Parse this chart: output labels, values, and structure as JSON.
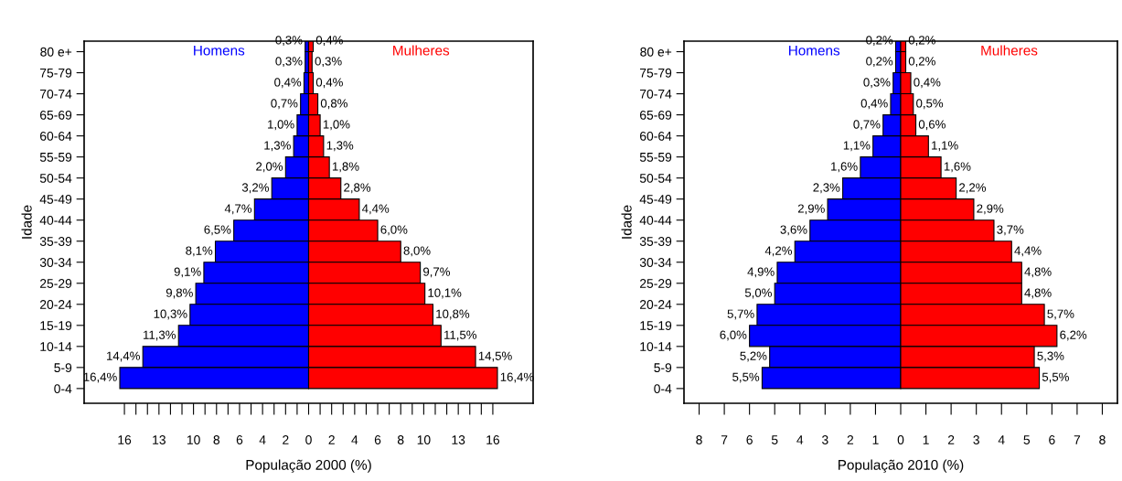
{
  "chart_data": [
    {
      "type": "bar",
      "orientation": "horizontal",
      "xlabel": "População 2000 (%)",
      "ylabel": "Idade",
      "categories": [
        "80 e+",
        "75-79",
        "70-74",
        "65-69",
        "60-64",
        "55-59",
        "50-54",
        "45-49",
        "40-44",
        "35-39",
        "30-34",
        "25-29",
        "20-24",
        "15-19",
        "10-14",
        "5-9",
        "0-4"
      ],
      "series": [
        {
          "name": "Homens",
          "color": "#0000ff",
          "values": [
            0.3,
            0.3,
            0.4,
            0.7,
            1.0,
            1.3,
            2.0,
            3.2,
            4.7,
            6.5,
            8.1,
            9.1,
            9.8,
            10.3,
            11.3,
            14.4,
            16.4
          ],
          "base": [
            -0.3,
            -0.3,
            -0.4,
            -0.7,
            -1.0,
            -1.3,
            -2.0,
            -3.2,
            -4.7,
            -6.5,
            -8.1,
            -9.1,
            -9.8,
            -10.3,
            -11.3,
            -14.4,
            -16.4
          ],
          "value_labels": [
            "0,3%",
            "0,3%",
            "0,4%",
            "0,7%",
            "1,0%",
            "1,3%",
            "2,0%",
            "3,2%",
            "4,7%",
            "6,5%",
            "8,1%",
            "9,1%",
            "9,8%",
            "10,3%",
            "11,3%",
            "14,4%",
            "16,4%"
          ]
        },
        {
          "name": "Mulheres",
          "color": "#ff0000",
          "values": [
            0.4,
            0.3,
            0.4,
            0.8,
            1.0,
            1.3,
            1.8,
            2.8,
            4.4,
            6.0,
            8.0,
            9.7,
            10.1,
            10.8,
            11.5,
            14.5,
            16.4
          ],
          "base": [
            0,
            0,
            0,
            0,
            0,
            0,
            0,
            0,
            0,
            0,
            0,
            0,
            0,
            0,
            0,
            0,
            0
          ],
          "value_labels": [
            "0,4%",
            "0,3%",
            "0,4%",
            "0,8%",
            "1,0%",
            "1,3%",
            "1,8%",
            "2,8%",
            "4,4%",
            "6,0%",
            "8,0%",
            "9,7%",
            "10,1%",
            "10,8%",
            "11,5%",
            "14,5%",
            "16,4%"
          ]
        }
      ],
      "xlim": [
        -19.5,
        19.5
      ],
      "xticks": [
        {
          "value": -16,
          "label": "16"
        },
        {
          "value": -15,
          "label": null
        },
        {
          "value": -14,
          "label": null
        },
        {
          "value": -13,
          "label": "13"
        },
        {
          "value": -12,
          "label": null
        },
        {
          "value": -11,
          "label": null
        },
        {
          "value": -10,
          "label": "10"
        },
        {
          "value": -9,
          "label": null
        },
        {
          "value": -8,
          "label": "8"
        },
        {
          "value": -7,
          "label": null
        },
        {
          "value": -6,
          "label": "6"
        },
        {
          "value": -5,
          "label": null
        },
        {
          "value": -4,
          "label": "4"
        },
        {
          "value": -3,
          "label": null
        },
        {
          "value": -2,
          "label": "2"
        },
        {
          "value": -1,
          "label": null
        },
        0,
        {
          "value": 1,
          "label": null
        },
        2,
        {
          "value": 3,
          "label": null
        },
        4,
        {
          "value": 5,
          "label": null
        },
        6,
        {
          "value": 7,
          "label": null
        },
        8,
        {
          "value": 9,
          "label": null
        },
        10,
        {
          "value": 11,
          "label": null
        },
        {
          "value": 12,
          "label": null
        },
        13,
        {
          "value": 14,
          "label": null
        },
        {
          "value": 15,
          "label": null
        },
        16
      ],
      "grid": false,
      "legend": false
    },
    {
      "type": "bar",
      "orientation": "horizontal",
      "xlabel": "População 2010 (%)",
      "ylabel": "Idade",
      "categories": [
        "80 e+",
        "75-79",
        "70-74",
        "65-69",
        "60-64",
        "55-59",
        "50-54",
        "45-49",
        "40-44",
        "35-39",
        "30-34",
        "25-29",
        "20-24",
        "15-19",
        "10-14",
        "5-9",
        "0-4"
      ],
      "series": [
        {
          "name": "Homens",
          "color": "#0000ff",
          "values": [
            0.2,
            0.2,
            0.3,
            0.4,
            0.7,
            1.1,
            1.6,
            2.3,
            2.9,
            3.6,
            4.2,
            4.9,
            5.0,
            5.7,
            6.0,
            5.2,
            5.5
          ],
          "base": [
            -0.2,
            -0.2,
            -0.3,
            -0.4,
            -0.7,
            -1.1,
            -1.6,
            -2.3,
            -2.9,
            -3.6,
            -4.2,
            -4.9,
            -5.0,
            -5.7,
            -6.0,
            -5.2,
            -5.5
          ],
          "value_labels": [
            "0,2%",
            "0,2%",
            "0,3%",
            "0,4%",
            "0,7%",
            "1,1%",
            "1,6%",
            "2,3%",
            "2,9%",
            "3,6%",
            "4,2%",
            "4,9%",
            "5,0%",
            "5,7%",
            "6,0%",
            "5,2%",
            "5,5%"
          ]
        },
        {
          "name": "Mulheres",
          "color": "#ff0000",
          "values": [
            0.2,
            0.2,
            0.4,
            0.5,
            0.6,
            1.1,
            1.6,
            2.2,
            2.9,
            3.7,
            4.4,
            4.8,
            4.8,
            5.7,
            6.2,
            5.3,
            5.5
          ],
          "base": [
            0,
            0,
            0,
            0,
            0,
            0,
            0,
            0,
            0,
            0,
            0,
            0,
            0,
            0,
            0,
            0,
            0
          ],
          "value_labels": [
            "0,2%",
            "0,2%",
            "0,4%",
            "0,5%",
            "0,6%",
            "1,1%",
            "1,6%",
            "2,2%",
            "2,9%",
            "3,7%",
            "4,4%",
            "4,8%",
            "4,8%",
            "5,7%",
            "6,2%",
            "5,3%",
            "5,5%"
          ]
        }
      ],
      "xlim": [
        -8.6,
        8.6
      ],
      "xticks": [
        {
          "value": -8,
          "label": "8"
        },
        {
          "value": -7,
          "label": "7"
        },
        {
          "value": -6,
          "label": "6"
        },
        {
          "value": -5,
          "label": "5"
        },
        {
          "value": -4,
          "label": "4"
        },
        {
          "value": -3,
          "label": "3"
        },
        {
          "value": -2,
          "label": "2"
        },
        {
          "value": -1,
          "label": "1"
        },
        0,
        1,
        2,
        3,
        4,
        5,
        6,
        7,
        8
      ],
      "grid": false,
      "legend": false
    }
  ]
}
